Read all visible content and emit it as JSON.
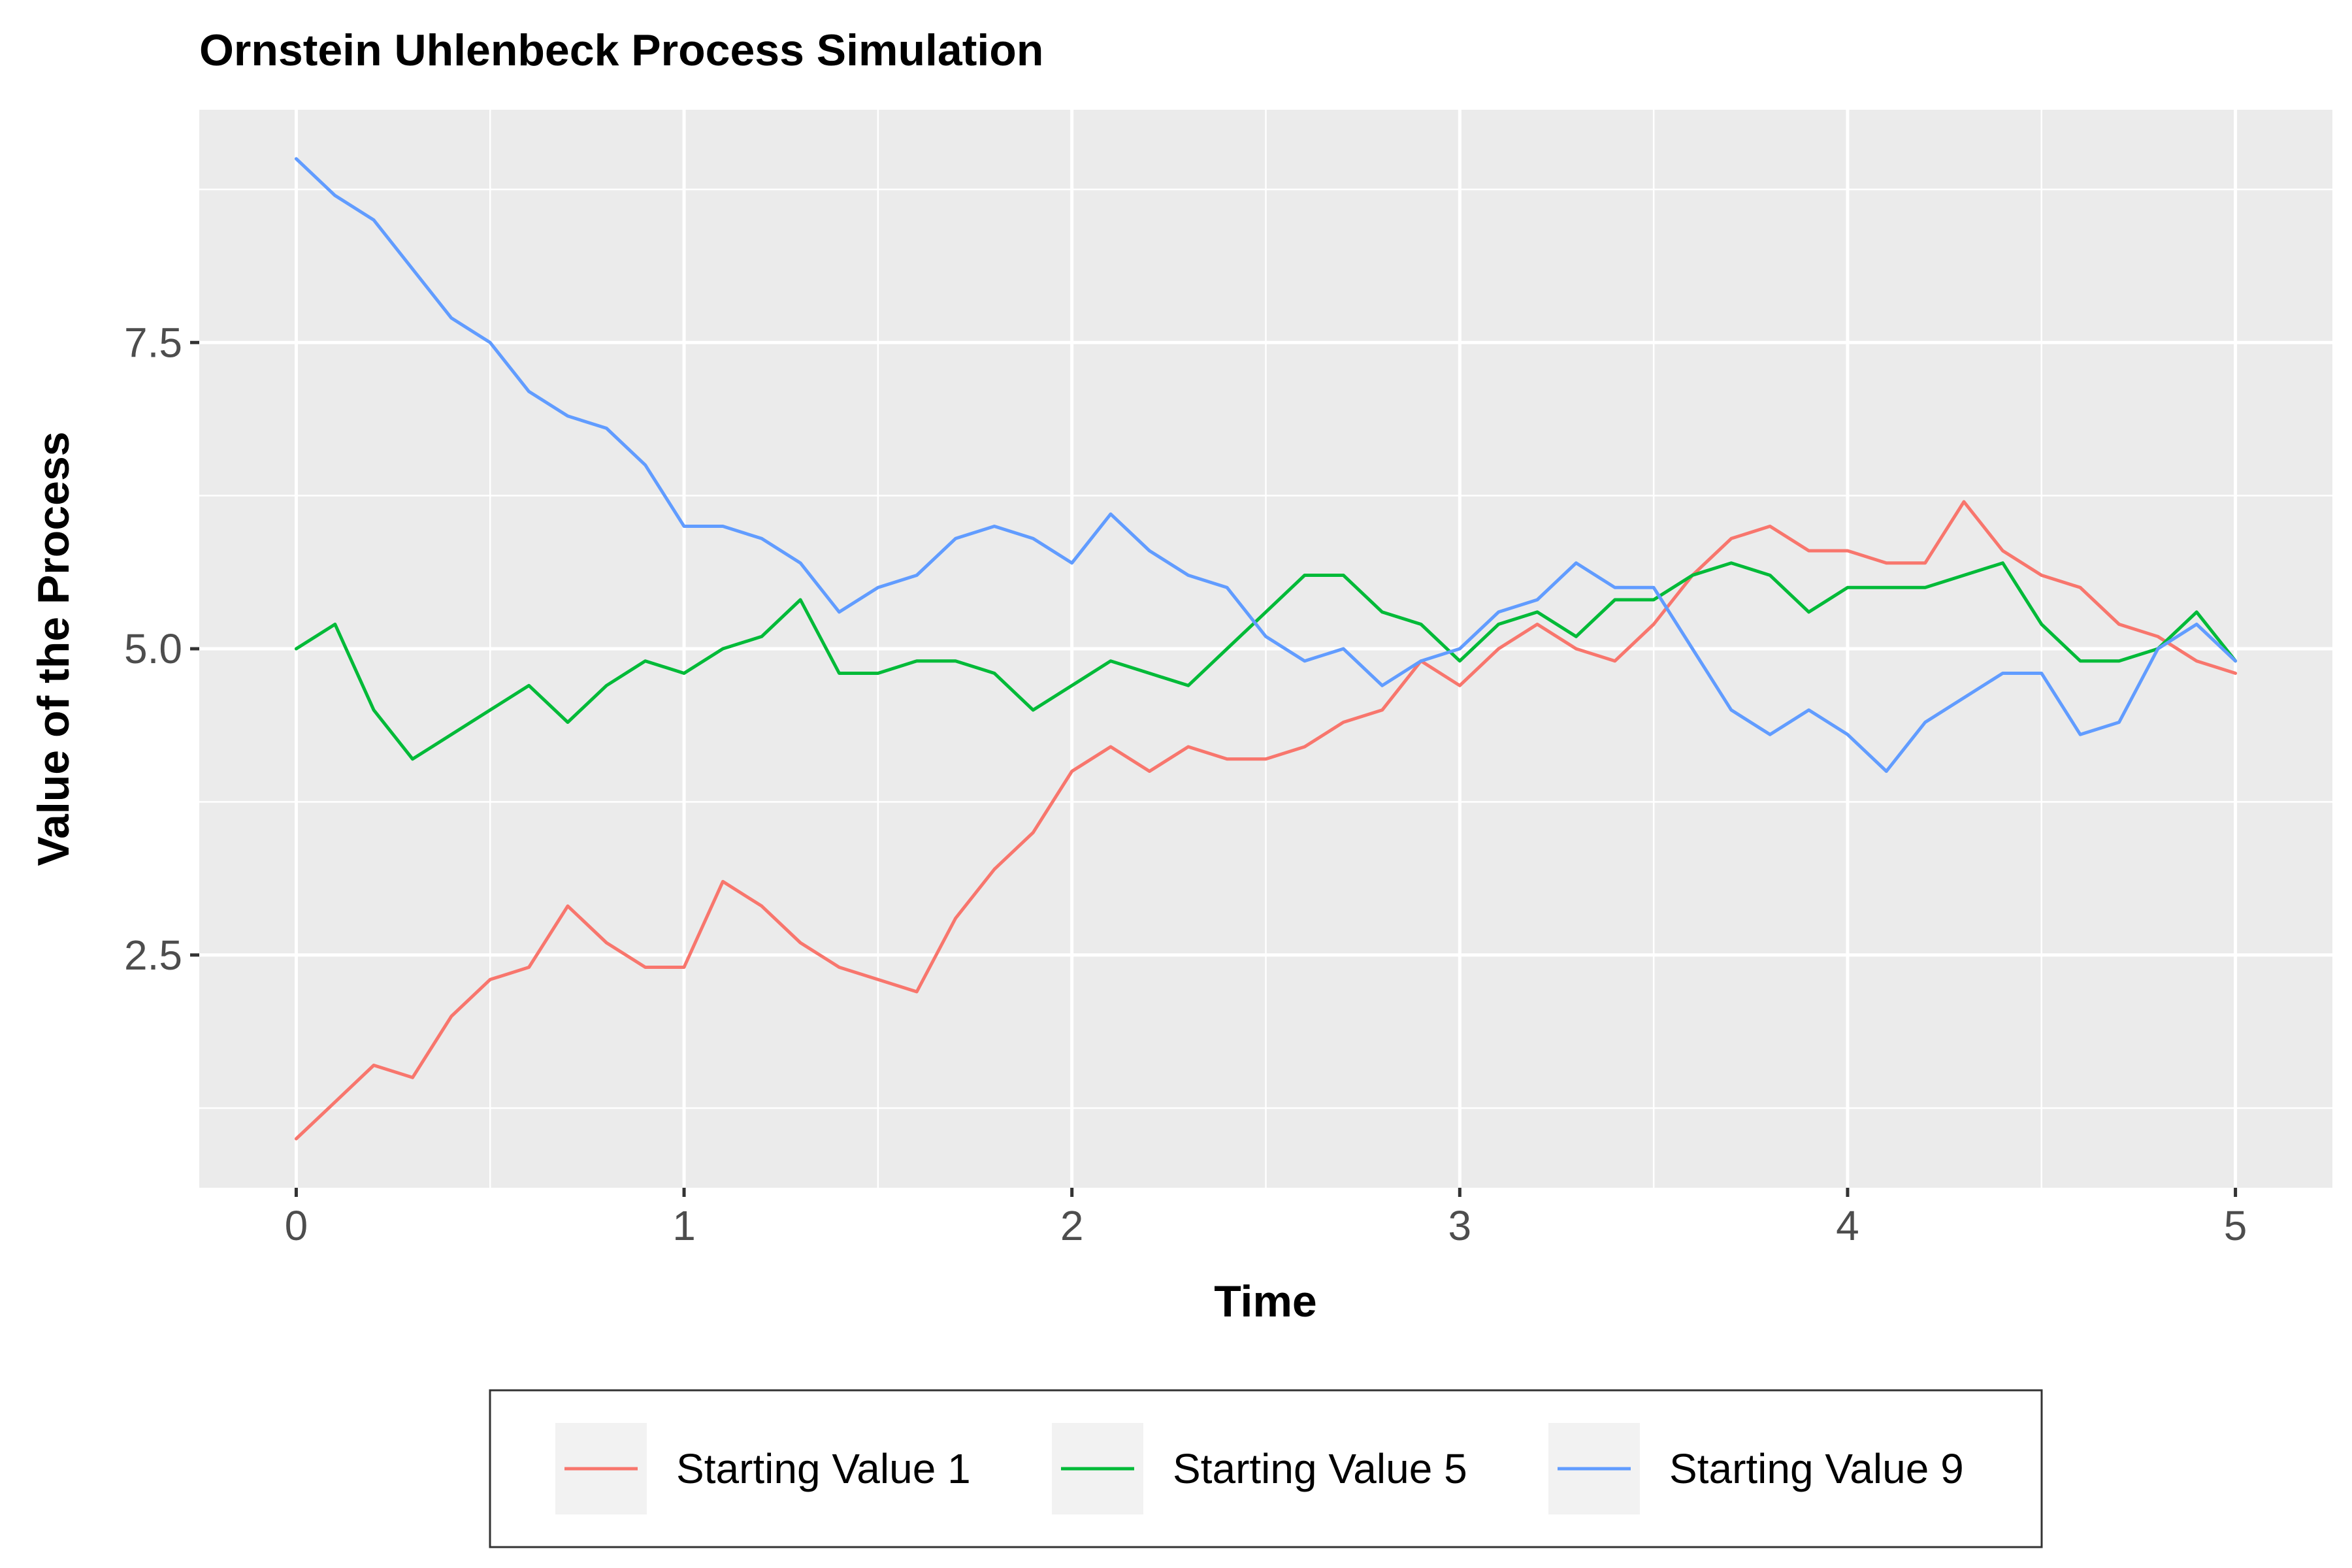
{
  "chart_data": {
    "type": "line",
    "title": "Ornstein Uhlenbeck Process Simulation",
    "xlabel": "Time",
    "ylabel": "Value of the Process",
    "xlim": [
      -0.25,
      5.25
    ],
    "ylim": [
      0.6,
      9.4
    ],
    "x_ticks": [
      0,
      1,
      2,
      3,
      4,
      5
    ],
    "x_tick_labels": [
      "0",
      "1",
      "2",
      "3",
      "4",
      "5"
    ],
    "y_ticks": [
      2.5,
      5.0,
      7.5
    ],
    "y_tick_labels": [
      "2.5",
      "5.0",
      "7.5"
    ],
    "grid": true,
    "legend_position": "bottom",
    "x": [
      0,
      0.1,
      0.2,
      0.3,
      0.4,
      0.5,
      0.6,
      0.7,
      0.8,
      0.9,
      1.0,
      1.1,
      1.2,
      1.3,
      1.4,
      1.5,
      1.6,
      1.7,
      1.8,
      1.9,
      2.0,
      2.1,
      2.2,
      2.3,
      2.4,
      2.5,
      2.6,
      2.7,
      2.8,
      2.9,
      3.0,
      3.1,
      3.2,
      3.3,
      3.4,
      3.5,
      3.6,
      3.7,
      3.8,
      3.9,
      4.0,
      4.1,
      4.2,
      4.3,
      4.4,
      4.5,
      4.6,
      4.7,
      4.8,
      4.9,
      5.0
    ],
    "series": [
      {
        "name": "Starting Value 1",
        "color": "#F8766D",
        "values": [
          1.0,
          1.3,
          1.6,
          1.5,
          2.0,
          2.3,
          2.4,
          2.9,
          2.6,
          2.4,
          2.4,
          3.1,
          2.9,
          2.6,
          2.4,
          2.3,
          2.2,
          2.8,
          3.2,
          3.5,
          4.0,
          4.2,
          4.0,
          4.2,
          4.1,
          4.1,
          4.2,
          4.4,
          4.5,
          4.9,
          4.7,
          5.0,
          5.2,
          5.0,
          4.9,
          5.2,
          5.6,
          5.9,
          6.0,
          5.8,
          5.8,
          5.7,
          5.7,
          6.2,
          5.8,
          5.6,
          5.5,
          5.2,
          5.1,
          4.9,
          4.8
        ]
      },
      {
        "name": "Starting Value 5",
        "color": "#00BA38",
        "values": [
          5.0,
          5.2,
          4.5,
          4.1,
          4.3,
          4.5,
          4.7,
          4.4,
          4.7,
          4.9,
          4.8,
          5.0,
          5.1,
          5.4,
          4.8,
          4.8,
          4.9,
          4.9,
          4.8,
          4.5,
          4.7,
          4.9,
          4.8,
          4.7,
          5.0,
          5.3,
          5.6,
          5.6,
          5.3,
          5.2,
          4.9,
          5.2,
          5.3,
          5.1,
          5.4,
          5.4,
          5.6,
          5.7,
          5.6,
          5.3,
          5.5,
          5.5,
          5.5,
          5.6,
          5.7,
          5.2,
          4.9,
          4.9,
          5.0,
          5.3,
          4.9
        ]
      },
      {
        "name": "Starting Value 9",
        "color": "#619CFF",
        "values": [
          9.0,
          8.7,
          8.5,
          8.1,
          7.7,
          7.5,
          7.1,
          6.9,
          6.8,
          6.5,
          6.0,
          6.0,
          5.9,
          5.7,
          5.3,
          5.5,
          5.6,
          5.9,
          6.0,
          5.9,
          5.7,
          6.1,
          5.8,
          5.6,
          5.5,
          5.1,
          4.9,
          5.0,
          4.7,
          4.9,
          5.0,
          5.3,
          5.4,
          5.7,
          5.5,
          5.5,
          5.0,
          4.5,
          4.3,
          4.5,
          4.3,
          4.0,
          4.4,
          4.6,
          4.8,
          4.8,
          4.3,
          4.4,
          5.0,
          5.2,
          4.9
        ]
      }
    ]
  }
}
